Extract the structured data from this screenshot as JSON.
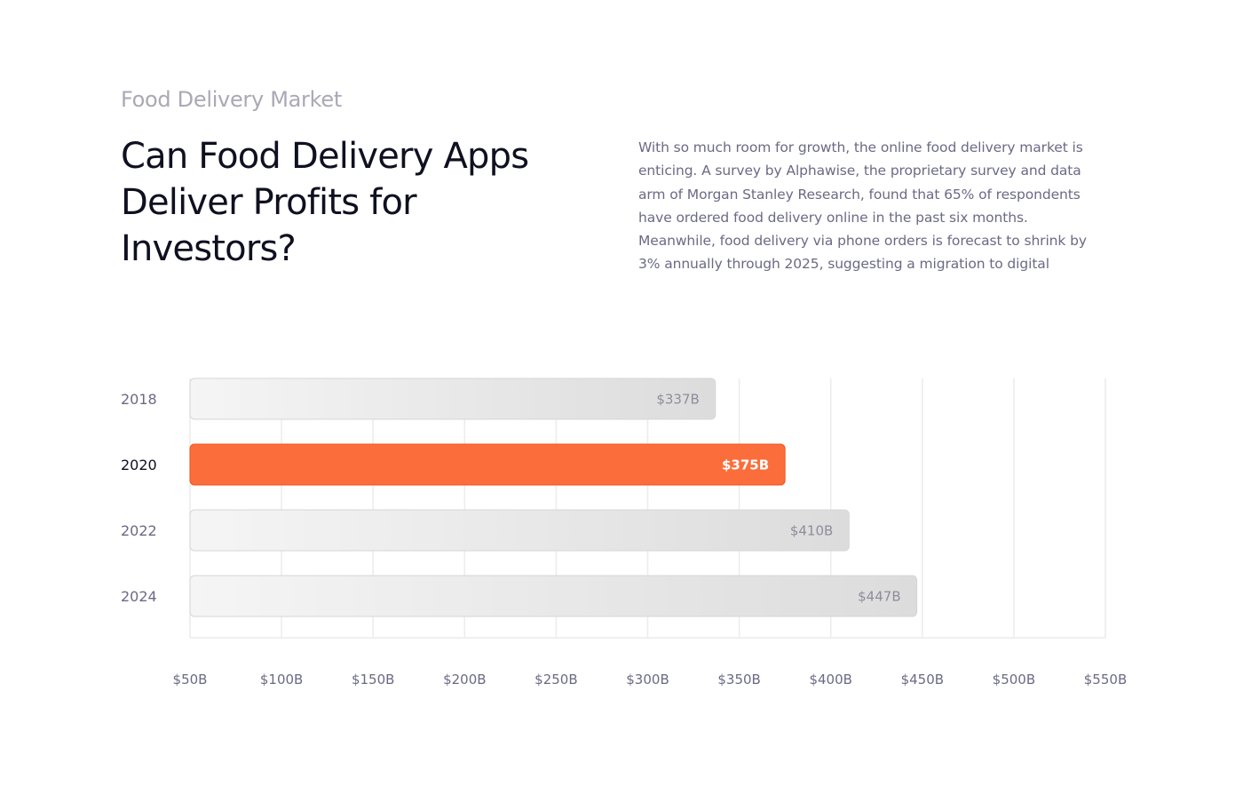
{
  "header": {
    "eyebrow": "Food Delivery Market",
    "title": "Can Food Delivery Apps Deliver Profits for Investors?",
    "description": "With so much room for growth, the online food delivery market is enticing. A survey by Alphawise, the proprietary survey and data arm of Morgan Stanley Research, found that 65% of respondents have ordered food delivery online in the past six months. Meanwhile, food delivery via phone orders is forecast to shrink by 3% annually through 2025, suggesting a migration to digital"
  },
  "colors": {
    "highlight": "#fb6d3a",
    "highlight_border": "#f0541e",
    "bar_start": "#f5f5f5",
    "bar_end": "#dcdcdc",
    "grid": "#ececec"
  },
  "chart_data": {
    "type": "bar",
    "orientation": "horizontal",
    "title": "",
    "xlabel": "",
    "ylabel": "",
    "categories": [
      "2018",
      "2020",
      "2022",
      "2024"
    ],
    "values": [
      337,
      375,
      410,
      447
    ],
    "value_labels": [
      "$337B",
      "$375B",
      "$410B",
      "$447B"
    ],
    "highlight_index": 1,
    "xlim": [
      50,
      550
    ],
    "x_ticks": [
      50,
      100,
      150,
      200,
      250,
      300,
      350,
      400,
      450,
      500,
      550
    ],
    "x_tick_labels": [
      "$50B",
      "$100B",
      "$150B",
      "$200B",
      "$250B",
      "$300B",
      "$350B",
      "$400B",
      "$450B",
      "$500B",
      "$550B"
    ],
    "grid": true,
    "unit": "billion USD"
  }
}
